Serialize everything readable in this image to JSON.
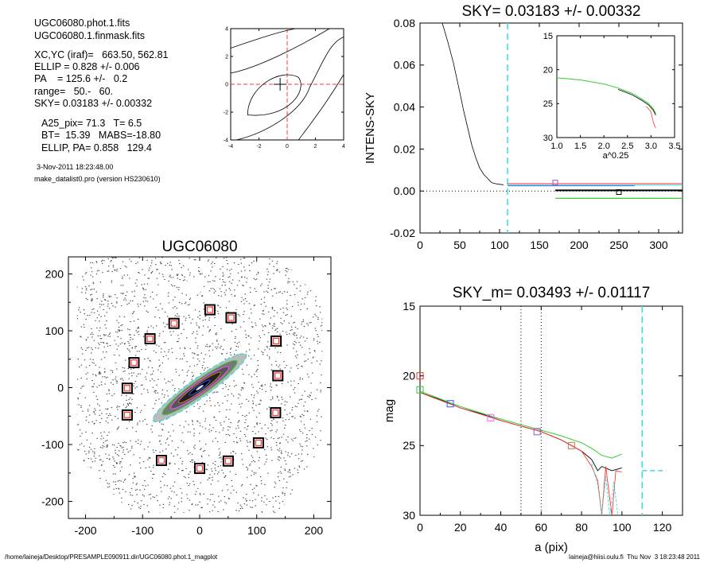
{
  "info": {
    "lines": [
      "UGC06080.phot.1.fits",
      "UGC06080.1.finmask.fits",
      "XC,YC (iraf)=   663.50, 562.81",
      "ELLIP = 0.828 +/- 0.006",
      "PA    = 125.6 +/-   0.2",
      "range=   50.-   60.",
      "SKY= 0.03183 +/- 0.00332",
      "A25_pix= 71.3   T= 6.5",
      "BT=  15.39   MABS=-18.80",
      "ELLIP, PA= 0.858   129.4"
    ],
    "date": "3-Nov-2011 18:23:48.00",
    "program": "make_datalist0.pro (version HS230610)"
  },
  "footer": {
    "left": "/home/laineja/Desktop/PRESAMPLE090911.dir/UGC06080.phot.1_magplot",
    "right": "laineja@hiisi.oulu.fi  Thu Nov  3 18:23:48 2011"
  },
  "colors": {
    "cyan": "#33dddd",
    "red": "#ff3333",
    "green": "#33cc33",
    "blue": "#3355ff",
    "magenta": "#ff55ff",
    "orange": "#cc7744",
    "purple": "#9955cc"
  },
  "chart_data": [
    {
      "type": "line",
      "panel": "centre-contours",
      "xlim": [
        -4,
        4
      ],
      "ylim": [
        -4,
        4
      ],
      "xticks": [
        "-4",
        "-2",
        "0",
        "2",
        "4"
      ],
      "yticks": [
        "4",
        "2",
        "0",
        "-2",
        "-4"
      ],
      "marker": {
        "x": -0.5,
        "y": 0
      }
    },
    {
      "type": "line",
      "panel": "sky-profile",
      "title": "SKY= 0.03183 +/- 0.00332",
      "xlabel": "",
      "ylabel": "INTENS-SKY",
      "xlim": [
        0,
        330
      ],
      "ylim": [
        -0.02,
        0.08
      ],
      "xticks": [
        "0",
        "50",
        "100",
        "150",
        "200",
        "250",
        "300"
      ],
      "yticks": [
        "0.08",
        "0.06",
        "0.04",
        "0.02",
        "0.00",
        "-0.02"
      ],
      "series": [
        {
          "x": [
            28,
            35,
            42,
            50,
            55,
            60,
            65,
            70,
            75,
            80,
            85,
            90,
            95,
            100,
            105
          ],
          "y": [
            0.08,
            0.071,
            0.061,
            0.047,
            0.038,
            0.03,
            0.022,
            0.016,
            0.011,
            0.008,
            0.006,
            0.004,
            0.0035,
            0.0032,
            0.003
          ]
        }
      ],
      "sky_level": 0.0,
      "vline_x": 110,
      "inset": {
        "xlabel": "a^0.25",
        "xlim": [
          1.0,
          3.5
        ],
        "ylim": [
          15,
          30
        ],
        "xticks": [
          "1.0",
          "1.5",
          "2.0",
          "2.5",
          "3.0",
          "3.5"
        ],
        "yticks": [
          "15",
          "20",
          "25",
          "30"
        ],
        "series": [
          {
            "x": [
              1.0,
              1.5,
              2.0,
              2.3,
              2.6,
              2.8,
              2.95,
              3.05,
              3.1
            ],
            "y": [
              21.2,
              21.5,
              22.1,
              22.7,
              23.5,
              24.3,
              25.0,
              25.8,
              26.5
            ]
          }
        ]
      }
    },
    {
      "type": "scatter",
      "panel": "image",
      "title": "UGC06080",
      "xlim": [
        -230,
        230
      ],
      "ylim": [
        -230,
        230
      ],
      "xticks": [
        "-200",
        "-100",
        "0",
        "100",
        "200"
      ],
      "yticks": [
        "200",
        "100",
        "0",
        "-100",
        "-200"
      ],
      "sky_boxes": {
        "x": [
          18,
          55,
          -45,
          -87,
          -115,
          -127,
          -127,
          -67,
          0,
          50,
          103,
          133,
          137,
          134
        ],
        "y": [
          137,
          123,
          113,
          86,
          44,
          -1,
          -48,
          -128,
          -142,
          -129,
          -97,
          -44,
          21,
          82
        ]
      },
      "galaxy": {
        "center_x": 0,
        "center_y": 0,
        "pa_deg": 35.6,
        "axes": [
          100,
          17
        ]
      }
    },
    {
      "type": "line",
      "panel": "magnitude-profile",
      "title": "SKY_m=  0.03493 +/- 0.01117",
      "xlabel": "a (pix)",
      "ylabel": "mag",
      "xlim": [
        0,
        130
      ],
      "ylim": [
        15,
        30
      ],
      "xticks": [
        "0",
        "20",
        "40",
        "60",
        "80",
        "100",
        "120"
      ],
      "yticks": [
        "15",
        "20",
        "25",
        "30"
      ],
      "series": [
        {
          "x": [
            0,
            10,
            20,
            30,
            40,
            50,
            60,
            70,
            75,
            80,
            85,
            88,
            90,
            95,
            100
          ],
          "y": [
            21.2,
            21.7,
            22.3,
            22.7,
            23.2,
            23.6,
            24.0,
            24.6,
            25.0,
            25.4,
            26.0,
            26.8,
            26.5,
            26.8,
            26.6
          ]
        }
      ],
      "range_lines": [
        50,
        60
      ],
      "sky_vline_x": 110,
      "sky_mag": 26.8
    }
  ]
}
